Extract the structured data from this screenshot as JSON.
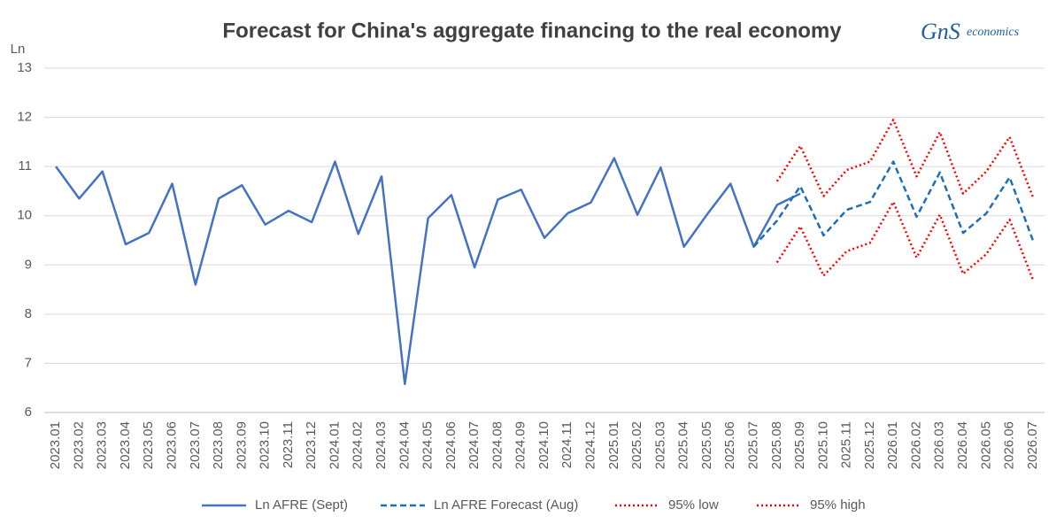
{
  "chart_data": {
    "type": "line",
    "title": "Forecast for China's aggregate financing to the real economy",
    "y_label": "Ln",
    "logo": {
      "mark": "GnS",
      "text": "economics"
    },
    "categories": [
      "2023.01",
      "2023.02",
      "2023.03",
      "2023.04",
      "2023.05",
      "2023.06",
      "2023.07",
      "2023.08",
      "2023.09",
      "2023.10",
      "2023.11",
      "2023.12",
      "2024.01",
      "2024.02",
      "2024.03",
      "2024.04",
      "2024.05",
      "2024.06",
      "2024.07",
      "2024.08",
      "2024.09",
      "2024.10",
      "2024.11",
      "2024.12",
      "2025.01",
      "2025.02",
      "2025.03",
      "2025.04",
      "2025.05",
      "2025.06",
      "2025.07",
      "2025.08",
      "2025.09",
      "2025.10",
      "2025.11",
      "2025.12",
      "2026.01",
      "2026.02",
      "2026.03",
      "2026.04",
      "2026.05",
      "2026.06",
      "2026.07"
    ],
    "series": [
      {
        "name": "Ln AFRE (Sept)",
        "color": "#4472c4",
        "dash": "solid",
        "values": [
          11.0,
          10.35,
          10.9,
          9.42,
          9.65,
          10.65,
          8.6,
          10.35,
          10.62,
          9.82,
          10.1,
          9.87,
          11.1,
          9.63,
          10.8,
          6.58,
          9.95,
          10.42,
          8.95,
          10.33,
          10.53,
          9.55,
          10.05,
          10.27,
          11.17,
          10.02,
          10.98,
          9.37,
          10.03,
          10.65,
          9.37,
          10.22,
          10.45,
          null,
          null,
          null,
          null,
          null,
          null,
          null,
          null,
          null,
          null
        ]
      },
      {
        "name": "Ln AFRE Forecast (Aug)",
        "color": "#1f6fb4",
        "dash": "dashed",
        "values": [
          null,
          null,
          null,
          null,
          null,
          null,
          null,
          null,
          null,
          null,
          null,
          null,
          null,
          null,
          null,
          null,
          null,
          null,
          null,
          null,
          null,
          null,
          null,
          null,
          null,
          null,
          null,
          null,
          null,
          null,
          9.37,
          9.9,
          10.6,
          9.6,
          10.12,
          10.28,
          11.1,
          9.98,
          10.88,
          9.65,
          10.05,
          10.78,
          9.5
        ]
      },
      {
        "name": "95% low",
        "color": "#ff0000",
        "dash": "dotted",
        "values": [
          null,
          null,
          null,
          null,
          null,
          null,
          null,
          null,
          null,
          null,
          null,
          null,
          null,
          null,
          null,
          null,
          null,
          null,
          null,
          null,
          null,
          null,
          null,
          null,
          null,
          null,
          null,
          null,
          null,
          null,
          null,
          9.05,
          9.78,
          8.78,
          9.28,
          9.45,
          10.28,
          9.15,
          10.02,
          8.82,
          9.22,
          9.92,
          8.7
        ]
      },
      {
        "name": "95% high",
        "color": "#ff0000",
        "dash": "dotted",
        "values": [
          null,
          null,
          null,
          null,
          null,
          null,
          null,
          null,
          null,
          null,
          null,
          null,
          null,
          null,
          null,
          null,
          null,
          null,
          null,
          null,
          null,
          null,
          null,
          null,
          null,
          null,
          null,
          null,
          null,
          null,
          null,
          10.7,
          11.42,
          10.4,
          10.93,
          11.1,
          11.95,
          10.8,
          11.7,
          10.45,
          10.9,
          11.6,
          10.38
        ]
      }
    ],
    "ylim": [
      6,
      13
    ],
    "yticks": [
      6,
      7,
      8,
      9,
      10,
      11,
      12,
      13
    ],
    "grid": true,
    "legend": "bottom"
  }
}
